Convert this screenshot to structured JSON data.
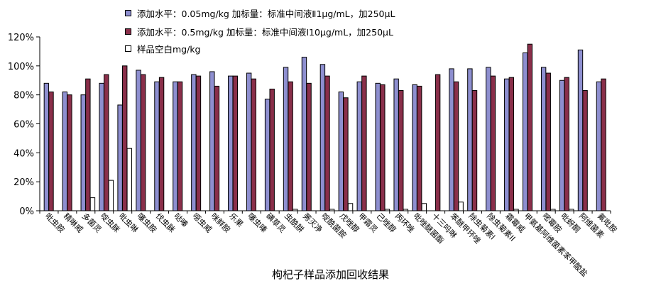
{
  "chart_data": {
    "type": "bar",
    "title": "枸杞子样品添加回收结果",
    "xlabel": "",
    "ylabel": "",
    "ylim": [
      0,
      1.2
    ],
    "yticks": [
      0,
      0.2,
      0.4,
      0.6,
      0.8,
      1.0,
      1.2
    ],
    "ytick_labels": [
      "0%",
      "20%",
      "40%",
      "60%",
      "80%",
      "100%",
      "120%"
    ],
    "grid": false,
    "legend_position": "top",
    "categories": [
      "吡虫胺",
      "精啉威",
      "多菌灵",
      "啶虫脒",
      "吡虫啉",
      "噻虫胺",
      "伐虫脒",
      "哒嗪",
      "噁虫威",
      "咪鲜胺",
      "乐果",
      "噻虫嗪",
      "磺草灵",
      "虫酰肼",
      "莠灭净",
      "啶酰菌胺",
      "戊唑醇",
      "甲霜灵",
      "己唑醇",
      "丙环唑",
      "吡唑醚菌酯",
      "十三吗啉",
      "苯醚甲环唑",
      "除虫菊素I",
      "除虫菊素II",
      "霜霉威",
      "甲氨基阿维菌素苯甲酸盐",
      "嘧霉胺",
      "吡蚜酮",
      "阿维菌素",
      "氟吡胺"
    ],
    "series": [
      {
        "name": "添加水平：0.05mg/kg 加标量：标准中间液Ⅱ1μg/mL，加250μL",
        "color": "#8e8fd0",
        "values": [
          0.88,
          0.82,
          0.8,
          0.88,
          0.73,
          0.97,
          0.89,
          0.89,
          0.94,
          0.96,
          0.93,
          0.95,
          0.77,
          0.99,
          1.06,
          1.01,
          0.82,
          0.89,
          0.88,
          0.91,
          0.87,
          null,
          0.98,
          0.98,
          0.99,
          0.91,
          1.09,
          0.99,
          0.9,
          1.11,
          0.89
        ]
      },
      {
        "name": "添加水平：0.5mg/kg 加标量：标准中间液Ⅰ10μg/mL，加250μL",
        "color": "#8a2f4a",
        "values": [
          0.82,
          0.8,
          0.91,
          0.94,
          1.0,
          0.94,
          0.92,
          0.89,
          0.93,
          0.86,
          0.93,
          0.91,
          0.84,
          0.89,
          0.88,
          0.93,
          0.78,
          0.93,
          0.87,
          0.83,
          0.86,
          0.94,
          0.89,
          0.83,
          0.93,
          0.92,
          1.15,
          0.95,
          0.92,
          0.83,
          0.91
        ]
      },
      {
        "name": "样品空白mg/kg",
        "color": "#ffffff",
        "values": [
          0,
          0,
          0.09,
          0.21,
          0.43,
          0,
          0,
          0,
          0,
          0,
          0,
          0,
          0,
          0.01,
          0,
          0.01,
          0.05,
          0,
          0.01,
          0.01,
          0.05,
          0,
          0.06,
          0,
          0,
          0.01,
          0,
          0.01,
          0.01,
          0,
          0
        ]
      }
    ]
  }
}
